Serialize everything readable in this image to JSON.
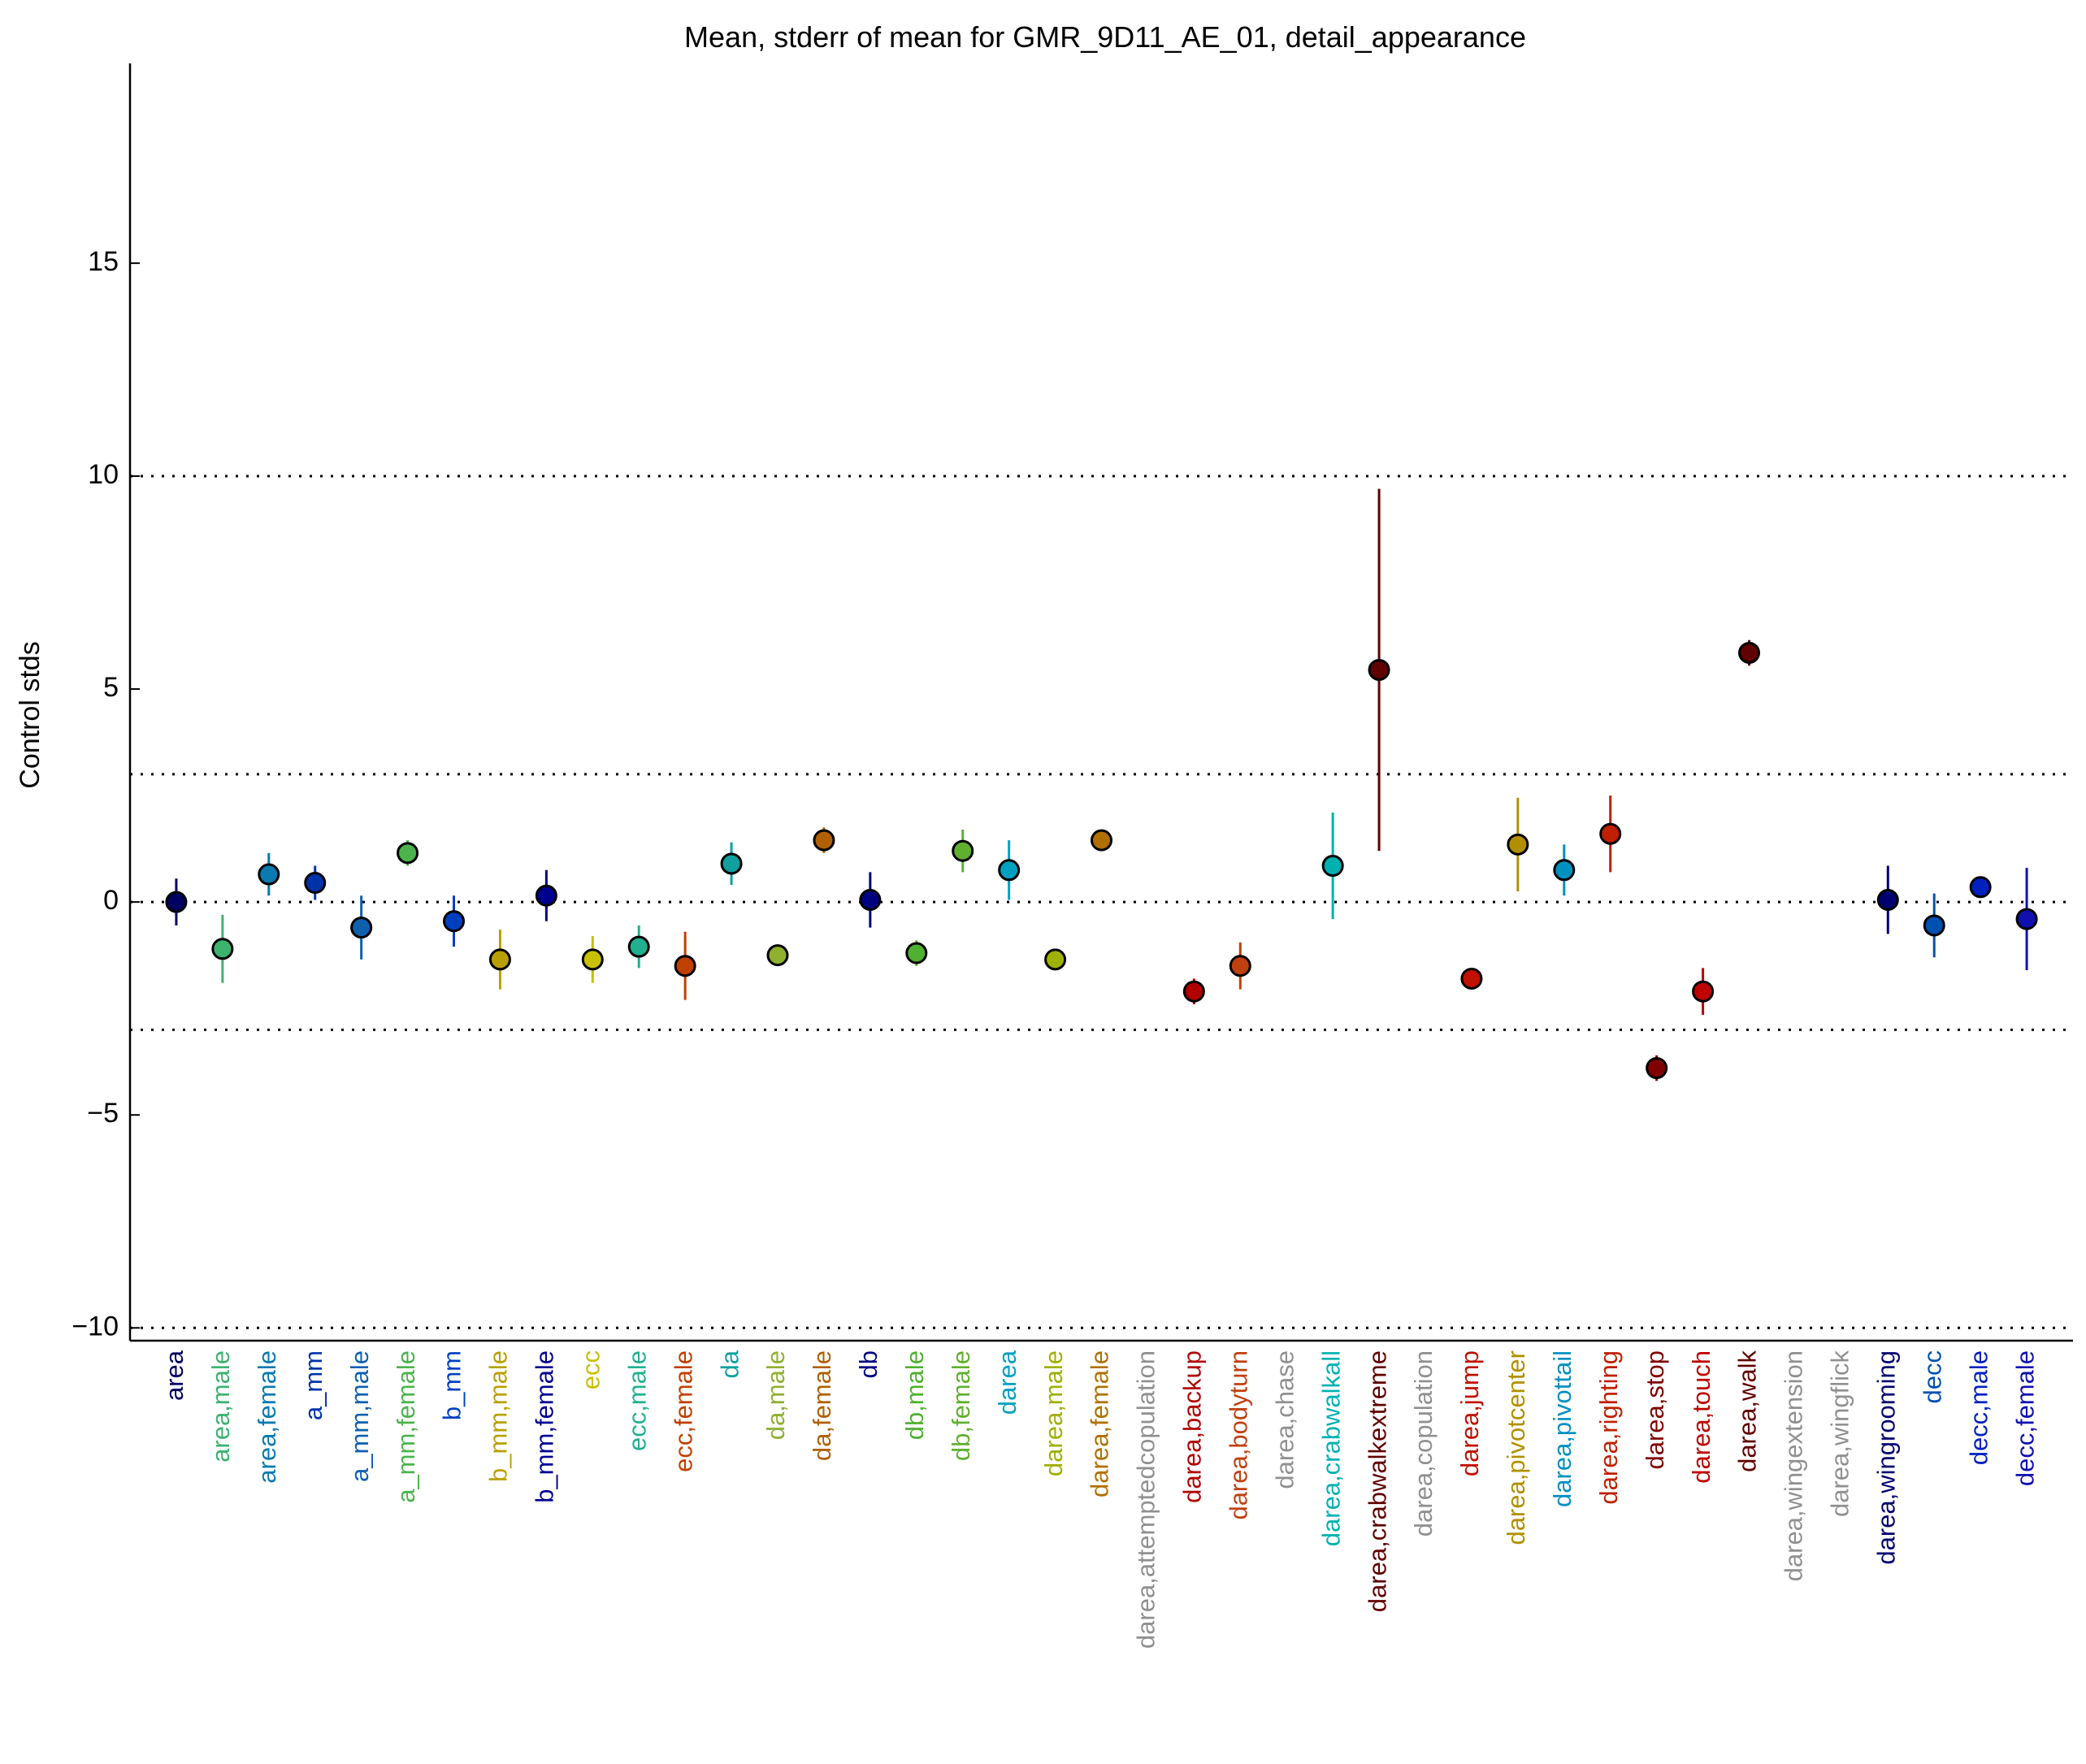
{
  "chart_data": {
    "type": "errorbar",
    "title": "Mean, stderr of mean for GMR_9D11_AE_01, detail_appearance",
    "y_label": "Control stds",
    "categories": [
      "area",
      "area,male",
      "area,female",
      "a_mm",
      "a_mm,male",
      "a_mm,female",
      "b_mm",
      "b_mm,male",
      "b_mm,female",
      "ecc",
      "ecc,male",
      "ecc,female",
      "da",
      "da,male",
      "da,female",
      "db",
      "db,male",
      "db,female",
      "darea",
      "darea,male",
      "darea,female",
      "darea,attemptedcopulation",
      "darea,backup",
      "darea,bodyturn",
      "darea,chase",
      "darea,crabwalkall",
      "darea,crabwalkextreme",
      "darea,copulation",
      "darea,jump",
      "darea,pivotcenter",
      "darea,pivottail",
      "darea,righting",
      "darea,stop",
      "darea,touch",
      "darea,walk",
      "darea,wingextension",
      "darea,wingflick",
      "darea,wingrooming",
      "decc",
      "decc,male",
      "decc,female"
    ],
    "values": [
      0,
      -1.1,
      0.65,
      0.45,
      -0.6,
      1.15,
      -0.45,
      -1.35,
      0.15,
      -1.35,
      -1.05,
      -1.5,
      0.9,
      -1.25,
      1.45,
      0.05,
      -1.2,
      1.2,
      0.75,
      -1.35,
      1.45,
      null,
      -2.1,
      -1.5,
      null,
      0.85,
      5.45,
      null,
      -1.8,
      1.35,
      0.75,
      1.6,
      -3.9,
      -2.1,
      5.85,
      null,
      null,
      0.05,
      -0.55,
      0.35,
      -0.4
    ],
    "errors": [
      0.55,
      0.8,
      0.5,
      0.4,
      0.75,
      0.3,
      0.6,
      0.7,
      0.6,
      0.55,
      0.5,
      0.8,
      0.5,
      0.2,
      0.3,
      0.65,
      0.3,
      0.5,
      0.7,
      0.25,
      0.2,
      null,
      0.3,
      0.55,
      null,
      1.25,
      4.25,
      null,
      0.15,
      1.1,
      0.6,
      0.9,
      0.3,
      0.55,
      0.3,
      null,
      null,
      0.8,
      0.75,
      0.2,
      1.2
    ],
    "colors": [
      "#000060",
      "#3cb371",
      "#0a7ab0",
      "#0033aa",
      "#1060b0",
      "#4cb34c",
      "#0040c0",
      "#b8a000",
      "#000090",
      "#c8c000",
      "#20b090",
      "#c04000",
      "#10a0a0",
      "#90b030",
      "#b06000",
      "#000080",
      "#50b030",
      "#60b030",
      "#00a0c0",
      "#a0b000",
      "#b07000",
      "#909090",
      "#b00000",
      "#c04010",
      "#909090",
      "#00b0b0",
      "#600000",
      "#909090",
      "#c01000",
      "#b09000",
      "#0090c0",
      "#c02000",
      "#800000",
      "#c00000",
      "#600000",
      "#909090",
      "#909090",
      "#000070",
      "#0050b0",
      "#0020c0",
      "#1010b0"
    ],
    "xlim": [
      0,
      42
    ],
    "ylim": [
      -10.3,
      19.5
    ],
    "yticks": [
      {
        "value": -10,
        "label": "−10"
      },
      {
        "value": -5,
        "label": "−5"
      },
      0,
      5,
      10,
      15
    ],
    "reference_lines": [
      -10,
      -3,
      0,
      3,
      10
    ]
  }
}
